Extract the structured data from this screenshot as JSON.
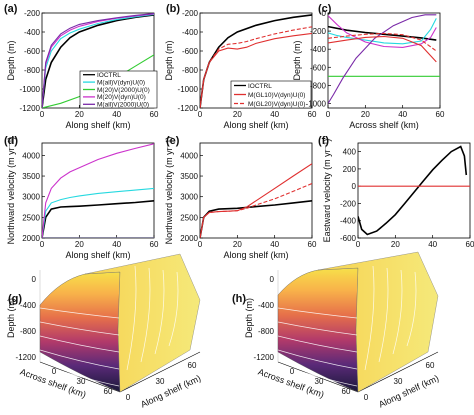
{
  "figure": {
    "letters": [
      "(a)",
      "(b)",
      "(c)",
      "(d)",
      "(e)",
      "(f)",
      "(g)",
      "(h)"
    ]
  },
  "chart_data": [
    {
      "id": "a",
      "type": "line",
      "xlabel": "Along shelf (km)",
      "ylabel": "Depth (m)",
      "xlim": [
        0,
        60
      ],
      "ylim": [
        -1200,
        -200
      ],
      "xticks": [
        "0",
        "20",
        "40",
        "60"
      ],
      "yticks": [
        "-200",
        "-400",
        "-600",
        "-800",
        "-1000",
        "-1200"
      ],
      "legend": "lower-right",
      "series": [
        {
          "name": "IOCTRL",
          "color": "#000000",
          "dash": "",
          "x": [
            0,
            2,
            5,
            10,
            15,
            20,
            30,
            40,
            50,
            60
          ],
          "y": [
            -1200,
            -900,
            -720,
            -560,
            -460,
            -400,
            -330,
            -280,
            -245,
            -220
          ]
        },
        {
          "name": "M(all)V(dyn)U(0)",
          "color": "#26d9e0",
          "dash": "",
          "x": [
            0,
            2,
            5,
            10,
            15,
            20,
            30,
            40,
            50,
            60
          ],
          "y": [
            -1200,
            -780,
            -600,
            -470,
            -410,
            -370,
            -310,
            -270,
            -240,
            -215
          ]
        },
        {
          "name": "M(20)V(2000)U(0)",
          "color": "#33cc33",
          "dash": "",
          "x": [
            0,
            10,
            20,
            30,
            40,
            50,
            60
          ],
          "y": [
            -1200,
            -1150,
            -1080,
            -980,
            -880,
            -760,
            -640
          ]
        },
        {
          "name": "M(20)V(dyn)U(0)",
          "color": "#cc33cc",
          "dash": "",
          "x": [
            0,
            2,
            5,
            10,
            15,
            20,
            30,
            40,
            50,
            60
          ],
          "y": [
            -1200,
            -740,
            -560,
            -440,
            -380,
            -340,
            -290,
            -255,
            -230,
            -210
          ]
        },
        {
          "name": "M(all)V(2000)U(0)",
          "color": "#7a2aa8",
          "dash": "",
          "x": [
            0,
            2,
            5,
            10,
            15,
            20,
            30,
            40,
            50,
            60
          ],
          "y": [
            -1200,
            -720,
            -540,
            -420,
            -360,
            -320,
            -280,
            -250,
            -225,
            -205
          ]
        }
      ]
    },
    {
      "id": "b",
      "type": "line",
      "xlabel": "Along shelf (km)",
      "ylabel": "Depth (m)",
      "xlim": [
        0,
        60
      ],
      "ylim": [
        -1200,
        -200
      ],
      "xticks": [
        "0",
        "20",
        "40",
        "60"
      ],
      "yticks": [
        "-200",
        "-400",
        "-600",
        "-800",
        "-1000",
        "-1200"
      ],
      "legend": "lower-right",
      "series": [
        {
          "name": "IOCTRL",
          "color": "#000000",
          "dash": "",
          "x": [
            0,
            2,
            5,
            10,
            15,
            20,
            30,
            40,
            50,
            60
          ],
          "y": [
            -1200,
            -900,
            -720,
            -560,
            -460,
            -400,
            -330,
            -280,
            -245,
            -220
          ]
        },
        {
          "name": "M(GL10)V(dyn)U(0)",
          "color": "#e03030",
          "dash": "",
          "x": [
            0,
            2,
            5,
            10,
            15,
            20,
            25,
            30,
            40,
            50,
            60
          ],
          "y": [
            -1200,
            -900,
            -720,
            -600,
            -570,
            -580,
            -560,
            -520,
            -470,
            -440,
            -415
          ]
        },
        {
          "name": "M(GL20)V(dyn)U(0)",
          "color": "#e03030",
          "dash": "4,2",
          "x": [
            0,
            2,
            5,
            10,
            15,
            20,
            25,
            30,
            40,
            50,
            60
          ],
          "y": [
            -1200,
            -900,
            -720,
            -580,
            -530,
            -520,
            -500,
            -470,
            -420,
            -380,
            -345
          ]
        }
      ]
    },
    {
      "id": "c",
      "type": "line",
      "xlabel": "Across shelf (km)",
      "ylabel": "Depth (m)",
      "xlim": [
        0,
        60
      ],
      "ylim": [
        -1050,
        0
      ],
      "xticks": [
        "0",
        "20",
        "40",
        "60"
      ],
      "yticks": [
        "0",
        "-200",
        "-400",
        "-600",
        "-800",
        "-1000"
      ],
      "legend": "none",
      "series": [
        {
          "color": "#000000",
          "dash": "",
          "x": [
            0,
            10,
            20,
            30,
            40,
            50,
            58
          ],
          "y": [
            -150,
            -190,
            -215,
            -235,
            -255,
            -275,
            -300
          ]
        },
        {
          "color": "#26d9e0",
          "dash": "",
          "x": [
            0,
            5,
            10,
            20,
            30,
            40,
            50,
            55,
            58
          ],
          "y": [
            -220,
            -250,
            -270,
            -300,
            -330,
            -340,
            -310,
            -180,
            -60
          ]
        },
        {
          "color": "#33cc33",
          "dash": "",
          "x": [
            0,
            60
          ],
          "y": [
            -700,
            -700
          ]
        },
        {
          "color": "#cc33cc",
          "dash": "",
          "x": [
            0,
            5,
            10,
            20,
            30,
            40,
            50,
            55,
            58
          ],
          "y": [
            -30,
            -130,
            -220,
            -320,
            -370,
            -380,
            -340,
            -270,
            -160
          ]
        },
        {
          "color": "#7a2aa8",
          "dash": "",
          "x": [
            0,
            3,
            8,
            15,
            25,
            35,
            45,
            52,
            58
          ],
          "y": [
            -1000,
            -900,
            -720,
            -500,
            -280,
            -140,
            -50,
            -20,
            -20
          ]
        },
        {
          "color": "#e03030",
          "dash": "",
          "x": [
            0,
            10,
            20,
            30,
            40,
            50,
            58
          ],
          "y": [
            -330,
            -300,
            -270,
            -260,
            -280,
            -360,
            -540
          ]
        },
        {
          "color": "#e03030",
          "dash": "4,2",
          "x": [
            0,
            10,
            20,
            30,
            40,
            50,
            58
          ],
          "y": [
            -280,
            -255,
            -235,
            -225,
            -240,
            -300,
            -420
          ]
        }
      ]
    },
    {
      "id": "d",
      "type": "line",
      "xlabel": "Along shelf (km)",
      "ylabel": "Northward velocity (m yr⁻¹)",
      "xlim": [
        0,
        60
      ],
      "ylim": [
        2000,
        4300
      ],
      "xticks": [
        "0",
        "20",
        "40",
        "60"
      ],
      "yticks": [
        "2000",
        "2500",
        "3000",
        "3500",
        "4000"
      ],
      "legend": "none",
      "series": [
        {
          "color": "#000000",
          "dash": "",
          "x": [
            0,
            2,
            5,
            10,
            15,
            20,
            30,
            40,
            50,
            60
          ],
          "y": [
            2000,
            2500,
            2700,
            2750,
            2760,
            2770,
            2800,
            2830,
            2860,
            2900
          ]
        },
        {
          "color": "#26d9e0",
          "dash": "",
          "x": [
            0,
            2,
            5,
            10,
            15,
            20,
            30,
            40,
            50,
            60
          ],
          "y": [
            2000,
            2650,
            2850,
            2930,
            2980,
            3020,
            3080,
            3120,
            3160,
            3200
          ]
        },
        {
          "color": "#33cc33",
          "dash": "",
          "x": [
            0,
            60
          ],
          "y": [
            2005,
            2005
          ]
        },
        {
          "color": "#cc33cc",
          "dash": "",
          "x": [
            0,
            2,
            5,
            10,
            15,
            20,
            30,
            40,
            50,
            60
          ],
          "y": [
            2000,
            2850,
            3200,
            3450,
            3600,
            3700,
            3900,
            4050,
            4170,
            4280
          ]
        },
        {
          "color": "#7a2aa8",
          "dash": "",
          "x": [
            0,
            60
          ],
          "y": [
            2000,
            2000
          ]
        }
      ]
    },
    {
      "id": "e",
      "type": "line",
      "xlabel": "Along shelf (km)",
      "ylabel": "Northward velocity (m yr⁻¹)",
      "xlim": [
        0,
        60
      ],
      "ylim": [
        2000,
        4300
      ],
      "xticks": [
        "0",
        "20",
        "40",
        "60"
      ],
      "yticks": [
        "2000",
        "2500",
        "3000",
        "3500",
        "4000"
      ],
      "legend": "none",
      "series": [
        {
          "color": "#000000",
          "dash": "",
          "x": [
            0,
            2,
            5,
            10,
            15,
            20,
            30,
            40,
            50,
            60
          ],
          "y": [
            2000,
            2500,
            2650,
            2700,
            2710,
            2720,
            2760,
            2800,
            2850,
            2900
          ]
        },
        {
          "color": "#e03030",
          "dash": "",
          "x": [
            0,
            2,
            5,
            10,
            15,
            20,
            25,
            30,
            40,
            50,
            60
          ],
          "y": [
            2000,
            2500,
            2620,
            2640,
            2650,
            2660,
            2750,
            2900,
            3200,
            3500,
            3800
          ]
        },
        {
          "color": "#e03030",
          "dash": "4,2",
          "x": [
            0,
            2,
            5,
            10,
            15,
            20,
            25,
            30,
            40,
            50,
            60
          ],
          "y": [
            2000,
            2500,
            2620,
            2640,
            2650,
            2660,
            2720,
            2800,
            2950,
            3130,
            3320
          ]
        }
      ]
    },
    {
      "id": "f",
      "type": "line",
      "xlabel": "",
      "ylabel": "Eastward velocity (m yr⁻¹)",
      "xlim": [
        0,
        60
      ],
      "ylim": [
        -600,
        500
      ],
      "xticks": [
        "0",
        "20",
        "40",
        "60"
      ],
      "yticks": [
        "400",
        "200",
        "0",
        "-200",
        "-400",
        "-600"
      ],
      "legend": "none",
      "series": [
        {
          "color": "#000000",
          "dash": "",
          "x": [
            0,
            2,
            5,
            10,
            15,
            20,
            25,
            30,
            35,
            40,
            45,
            50,
            55,
            57,
            58
          ],
          "y": [
            -350,
            -500,
            -560,
            -520,
            -430,
            -330,
            -200,
            -70,
            60,
            190,
            300,
            400,
            460,
            350,
            130
          ]
        },
        {
          "color": "#e03030",
          "dash": "",
          "x": [
            0,
            60
          ],
          "y": [
            0,
            0
          ]
        }
      ]
    },
    {
      "id": "g",
      "type": "area",
      "xlabel": "Along shelf (km)",
      "ylabel": "Depth (m)",
      "zticks": [
        "0",
        "-400",
        "-800",
        "-1200"
      ],
      "across_label": "Across shelf (km)",
      "across_ticks": [
        "0",
        "30",
        "60"
      ],
      "along_ticks": [
        "0",
        "30",
        "60"
      ],
      "legend": "none"
    },
    {
      "id": "h",
      "type": "area",
      "xlabel": "Along shelf (km)",
      "ylabel": "Depth (m)",
      "zticks": [
        "0",
        "-400",
        "-800",
        "-1200"
      ],
      "across_label": "Across shelf (km)",
      "across_ticks": [
        "0",
        "30",
        "60"
      ],
      "along_ticks": [
        "0",
        "30",
        "60"
      ],
      "legend": "none"
    }
  ]
}
